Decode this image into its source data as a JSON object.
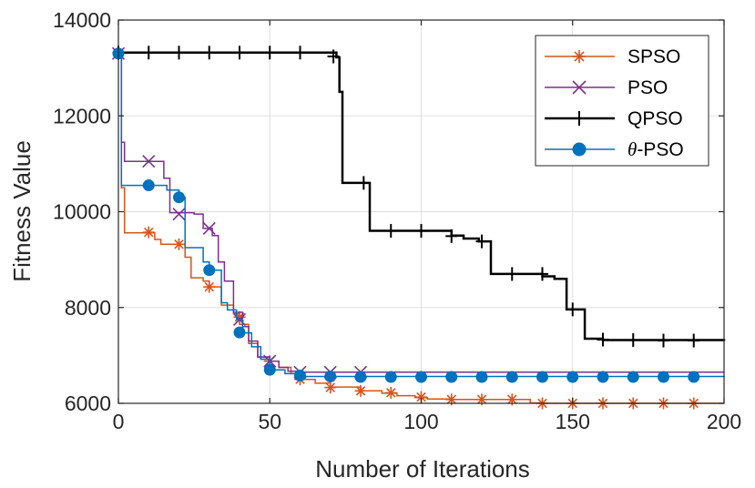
{
  "chart_data": {
    "type": "line",
    "title": "",
    "xlabel": "Number of Iterations",
    "ylabel": "Fitness Value",
    "xlim": [
      0,
      200
    ],
    "ylim": [
      6000,
      14000
    ],
    "xticks": [
      0,
      50,
      100,
      150,
      200
    ],
    "yticks": [
      6000,
      8000,
      10000,
      12000,
      14000
    ],
    "xtick_labels": [
      "0",
      "50",
      "100",
      "150",
      "200"
    ],
    "ytick_labels": [
      "6000",
      "8000",
      "10000",
      "12000",
      "14000"
    ],
    "grid": true,
    "legend_position": "top-right",
    "series": [
      {
        "name": "SPSO",
        "legend_label": "SPSO",
        "color": "#D95319",
        "marker": "asterisk",
        "line_width": 1.5,
        "steps": [
          [
            0,
            13300
          ],
          [
            1,
            10500
          ],
          [
            2,
            9560
          ],
          [
            11,
            9560
          ],
          [
            12,
            9420
          ],
          [
            14,
            9320
          ],
          [
            20,
            9320
          ],
          [
            22,
            9050
          ],
          [
            24,
            8620
          ],
          [
            28,
            8550
          ],
          [
            30,
            8430
          ],
          [
            34,
            8050
          ],
          [
            38,
            7870
          ],
          [
            40,
            7650
          ],
          [
            43,
            7250
          ],
          [
            46,
            6960
          ],
          [
            50,
            6880
          ],
          [
            53,
            6750
          ],
          [
            57,
            6620
          ],
          [
            60,
            6500
          ],
          [
            65,
            6420
          ],
          [
            70,
            6340
          ],
          [
            80,
            6260
          ],
          [
            87,
            6210
          ],
          [
            92,
            6160
          ],
          [
            98,
            6120
          ],
          [
            102,
            6090
          ],
          [
            110,
            6080
          ],
          [
            134,
            6080
          ],
          [
            136,
            6010
          ],
          [
            140,
            6000
          ],
          [
            200,
            6000
          ]
        ],
        "markers": [
          [
            0,
            13300
          ],
          [
            10,
            9570
          ],
          [
            20,
            9320
          ],
          [
            30,
            8430
          ],
          [
            40,
            7800
          ],
          [
            50,
            6880
          ],
          [
            60,
            6500
          ],
          [
            70,
            6330
          ],
          [
            80,
            6260
          ],
          [
            90,
            6220
          ],
          [
            100,
            6130
          ],
          [
            110,
            6080
          ],
          [
            120,
            6080
          ],
          [
            130,
            6080
          ],
          [
            140,
            6000
          ],
          [
            150,
            6000
          ],
          [
            160,
            6000
          ],
          [
            170,
            6000
          ],
          [
            180,
            6000
          ],
          [
            190,
            6000
          ]
        ]
      },
      {
        "name": "PSO",
        "legend_label": "PSO",
        "color": "#7E2F8E",
        "marker": "x",
        "line_width": 1.5,
        "steps": [
          [
            0,
            13300
          ],
          [
            1,
            11450
          ],
          [
            2,
            11050
          ],
          [
            14,
            11050
          ],
          [
            15,
            10700
          ],
          [
            17,
            9980
          ],
          [
            25,
            9950
          ],
          [
            28,
            9650
          ],
          [
            31,
            9500
          ],
          [
            33,
            8950
          ],
          [
            35,
            8550
          ],
          [
            38,
            7900
          ],
          [
            41,
            7600
          ],
          [
            43,
            7300
          ],
          [
            46,
            6970
          ],
          [
            50,
            6880
          ],
          [
            53,
            6750
          ],
          [
            56,
            6670
          ],
          [
            60,
            6650
          ],
          [
            200,
            6650
          ]
        ],
        "markers": [
          [
            0,
            13300
          ],
          [
            10,
            11050
          ],
          [
            20,
            9950
          ],
          [
            30,
            9650
          ],
          [
            40,
            7750
          ],
          [
            50,
            6880
          ],
          [
            60,
            6650
          ],
          [
            70,
            6650
          ],
          [
            80,
            6650
          ]
        ]
      },
      {
        "name": "QPSO",
        "legend_label": "QPSO",
        "color": "#000000",
        "marker": "plus",
        "line_width": 2.5,
        "steps": [
          [
            0,
            13320
          ],
          [
            72,
            13220
          ],
          [
            73,
            12500
          ],
          [
            74,
            10600
          ],
          [
            82,
            10600
          ],
          [
            83,
            9600
          ],
          [
            110,
            9500
          ],
          [
            114,
            9440
          ],
          [
            119,
            9380
          ],
          [
            121,
            9380
          ],
          [
            123,
            8700
          ],
          [
            140,
            8650
          ],
          [
            144,
            8600
          ],
          [
            148,
            7960
          ],
          [
            153,
            7960
          ],
          [
            154,
            7350
          ],
          [
            160,
            7320
          ],
          [
            200,
            7300
          ]
        ],
        "markers": [
          [
            0,
            13320
          ],
          [
            10,
            13320
          ],
          [
            20,
            13320
          ],
          [
            30,
            13320
          ],
          [
            40,
            13320
          ],
          [
            50,
            13320
          ],
          [
            60,
            13320
          ],
          [
            71,
            13240
          ],
          [
            81,
            10600
          ],
          [
            90,
            9600
          ],
          [
            100,
            9600
          ],
          [
            110,
            9490
          ],
          [
            120,
            9380
          ],
          [
            130,
            8700
          ],
          [
            140,
            8700
          ],
          [
            150,
            7960
          ],
          [
            160,
            7330
          ],
          [
            170,
            7320
          ],
          [
            180,
            7310
          ],
          [
            190,
            7310
          ]
        ]
      },
      {
        "name": "theta-PSO",
        "legend_label_greek": "θ",
        "legend_label_text": "-PSO",
        "color": "#0072BD",
        "marker": "circle",
        "line_width": 1.5,
        "steps": [
          [
            0,
            13300
          ],
          [
            1,
            10550
          ],
          [
            14,
            10550
          ],
          [
            16,
            10450
          ],
          [
            20,
            10300
          ],
          [
            22,
            9250
          ],
          [
            28,
            8950
          ],
          [
            30,
            8780
          ],
          [
            34,
            8100
          ],
          [
            36,
            7950
          ],
          [
            39,
            7750
          ],
          [
            41,
            7470
          ],
          [
            44,
            7180
          ],
          [
            47,
            6920
          ],
          [
            50,
            6700
          ],
          [
            55,
            6620
          ],
          [
            60,
            6560
          ],
          [
            200,
            6550
          ]
        ],
        "markers": [
          [
            0,
            13300
          ],
          [
            10,
            10550
          ],
          [
            20,
            10300
          ],
          [
            30,
            8780
          ],
          [
            40,
            7480
          ],
          [
            50,
            6700
          ],
          [
            60,
            6580
          ],
          [
            70,
            6560
          ],
          [
            80,
            6550
          ],
          [
            90,
            6550
          ],
          [
            100,
            6550
          ],
          [
            110,
            6550
          ],
          [
            120,
            6550
          ],
          [
            130,
            6550
          ],
          [
            140,
            6550
          ],
          [
            150,
            6550
          ],
          [
            160,
            6550
          ],
          [
            170,
            6550
          ],
          [
            180,
            6550
          ],
          [
            190,
            6550
          ]
        ]
      }
    ]
  }
}
